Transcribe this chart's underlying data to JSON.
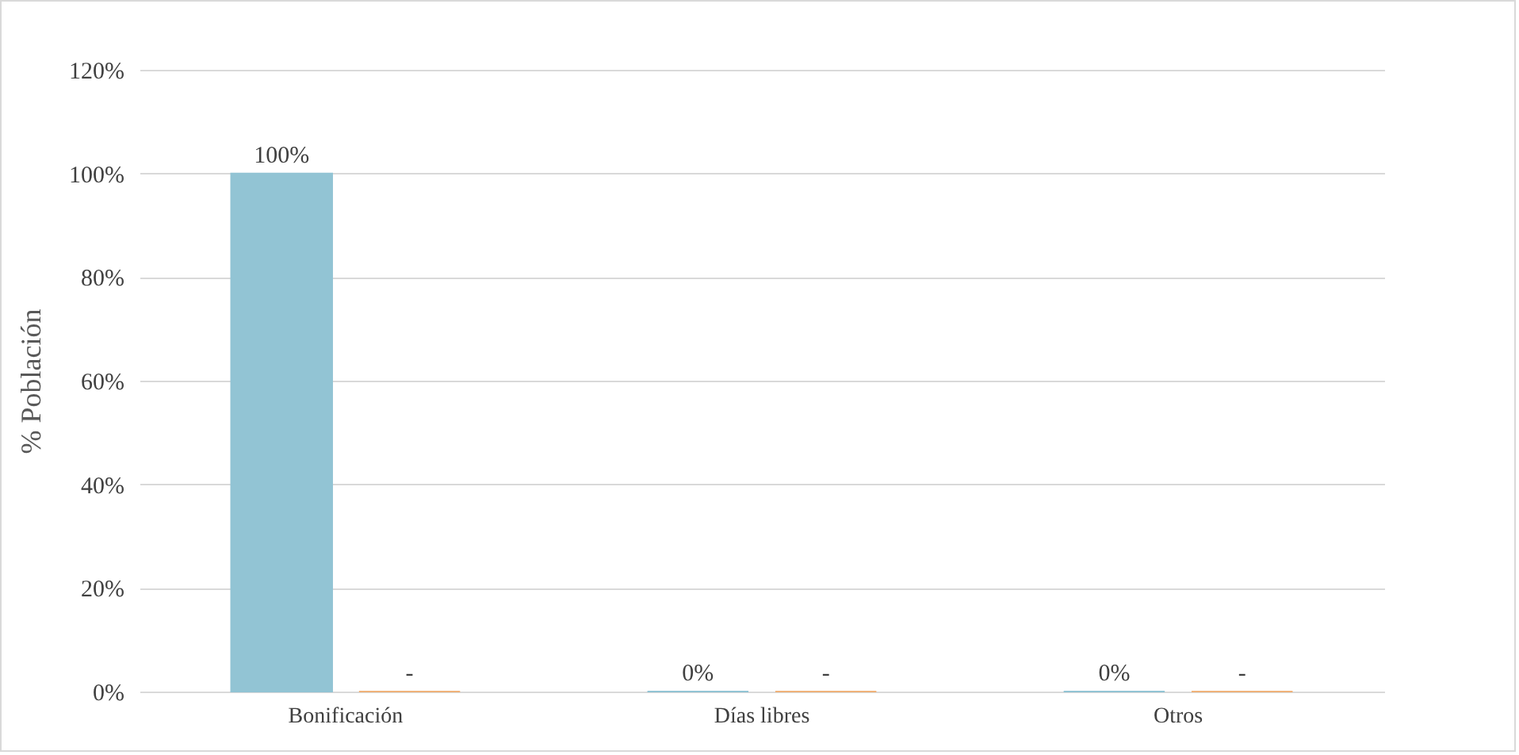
{
  "chart_data": {
    "type": "bar",
    "ylabel": "% Población",
    "categories": [
      "Bonificación",
      "Días libres",
      "Otros"
    ],
    "series": [
      {
        "color": "#92c4d4",
        "values": [
          100,
          0,
          0
        ],
        "value_labels": [
          "100%",
          "0%",
          "0%"
        ]
      },
      {
        "color": "#f0b27a",
        "values": [
          0,
          0,
          0
        ],
        "value_labels": [
          "-",
          "-",
          "-"
        ]
      }
    ],
    "ylim": [
      0,
      120
    ],
    "yticks": [
      {
        "value": 0,
        "label": "0%"
      },
      {
        "value": 20,
        "label": "20%"
      },
      {
        "value": 40,
        "label": "40%"
      },
      {
        "value": 60,
        "label": "60%"
      },
      {
        "value": 80,
        "label": "80%"
      },
      {
        "value": 100,
        "label": "100%"
      },
      {
        "value": 120,
        "label": "120%"
      }
    ],
    "grid": "y",
    "legend": false
  }
}
